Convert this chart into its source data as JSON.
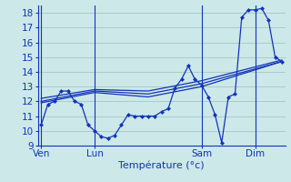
{
  "background_color": "#cce8e8",
  "grid_color": "#aacccc",
  "line_color": "#1133bb",
  "xlabel": "Température (°c)",
  "xlabel_fontsize": 8,
  "tick_label_fontsize": 7.5,
  "ylim": [
    9,
    18.5
  ],
  "yticks": [
    9,
    10,
    11,
    12,
    13,
    14,
    15,
    16,
    17,
    18
  ],
  "day_labels": [
    "Ven",
    "Lun",
    "Sam",
    "Dim"
  ],
  "day_positions": [
    0,
    8,
    24,
    32
  ],
  "xlim": [
    -0.5,
    36.5
  ],
  "series1_x": [
    0,
    1,
    2,
    3,
    4,
    5,
    6,
    7,
    8,
    9,
    10,
    11,
    12,
    13,
    14,
    15,
    16,
    17,
    18,
    19,
    20,
    21,
    22,
    23,
    24,
    25,
    26,
    27,
    28,
    29,
    30,
    31,
    32,
    33,
    34,
    35,
    36
  ],
  "series1_y": [
    10.4,
    11.8,
    12.0,
    12.7,
    12.7,
    12.0,
    11.8,
    10.4,
    10.0,
    9.6,
    9.5,
    9.7,
    10.4,
    11.1,
    11.0,
    11.0,
    11.0,
    11.0,
    11.3,
    11.5,
    12.9,
    13.5,
    14.4,
    13.5,
    13.1,
    12.3,
    11.1,
    9.2,
    12.3,
    12.5,
    17.7,
    18.2,
    18.2,
    18.3,
    17.5,
    15.0,
    14.7
  ],
  "series2_x": [
    0,
    8,
    16,
    24,
    36
  ],
  "series2_y": [
    11.9,
    12.6,
    12.3,
    13.0,
    14.7
  ],
  "series3_x": [
    0,
    8,
    16,
    24,
    36
  ],
  "series3_y": [
    12.0,
    12.7,
    12.5,
    13.2,
    14.7
  ],
  "series4_x": [
    0,
    8,
    16,
    24,
    36
  ],
  "series4_y": [
    12.2,
    12.8,
    12.7,
    13.4,
    14.8
  ]
}
